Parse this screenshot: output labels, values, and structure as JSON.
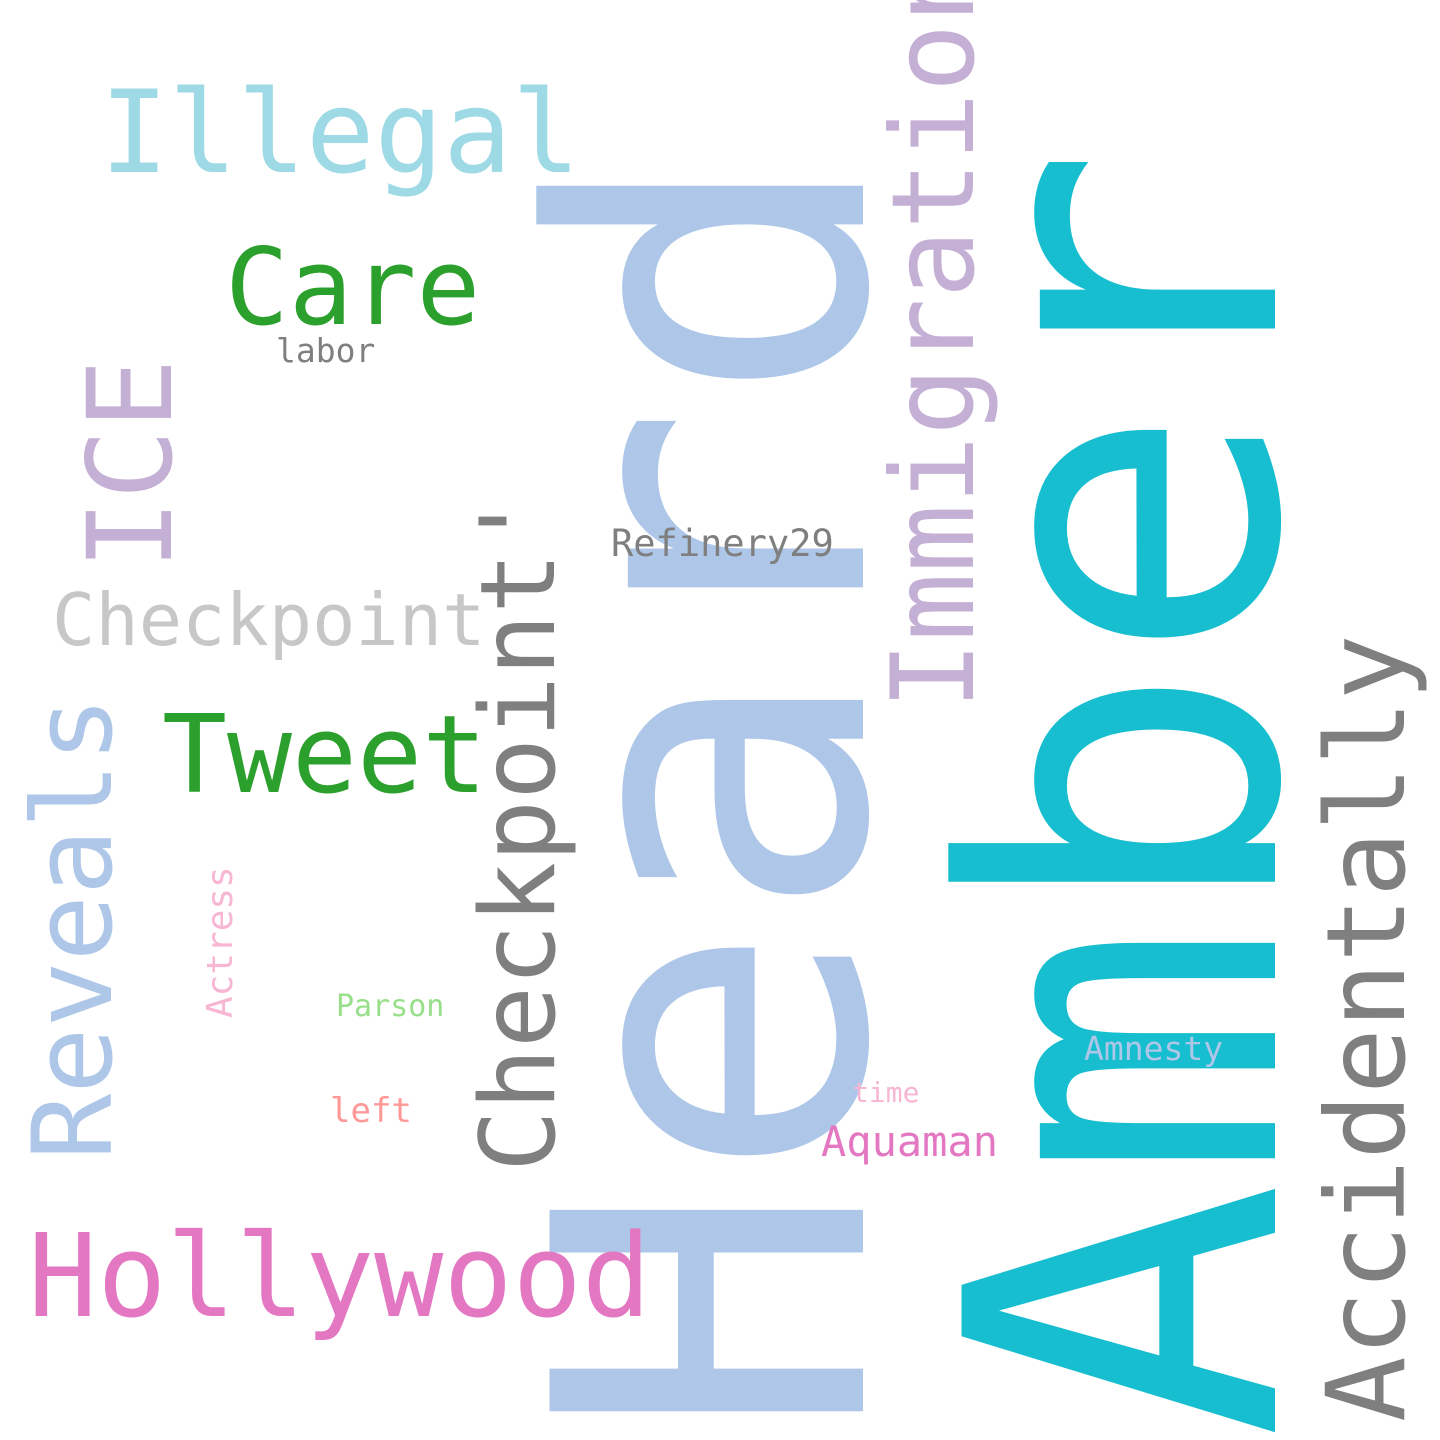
{
  "words": {
    "amber": "Amber",
    "heard": "Heard",
    "illegal": "Illegal",
    "immigration": "Immigration",
    "care": "Care",
    "labor": "labor",
    "ice": "ICE",
    "refinery29": "Refinery29",
    "checkpoint_plain": "Checkpoint",
    "checkpoint_quoted": "Checkpoint'",
    "tweet": "Tweet",
    "reveals": "Reveals",
    "accidentally": "Accidentally",
    "actress": "Actress",
    "parson": "Parson",
    "amnesty": "Amnesty",
    "time": "time",
    "left": "left",
    "aquaman": "Aquaman",
    "hollywood": "Hollywood"
  },
  "colors": {
    "teal": "#17becf",
    "light_blue": "#aec7e8",
    "light_cyan": "#9edae5",
    "lavender": "#c5b0d5",
    "green": "#2ca02c",
    "gray": "#7f7f7f",
    "light_gray": "#c7c7c7",
    "pink": "#e377c2",
    "light_pink": "#f7b6d2",
    "light_green": "#98df8a",
    "salmon": "#ff9896"
  }
}
